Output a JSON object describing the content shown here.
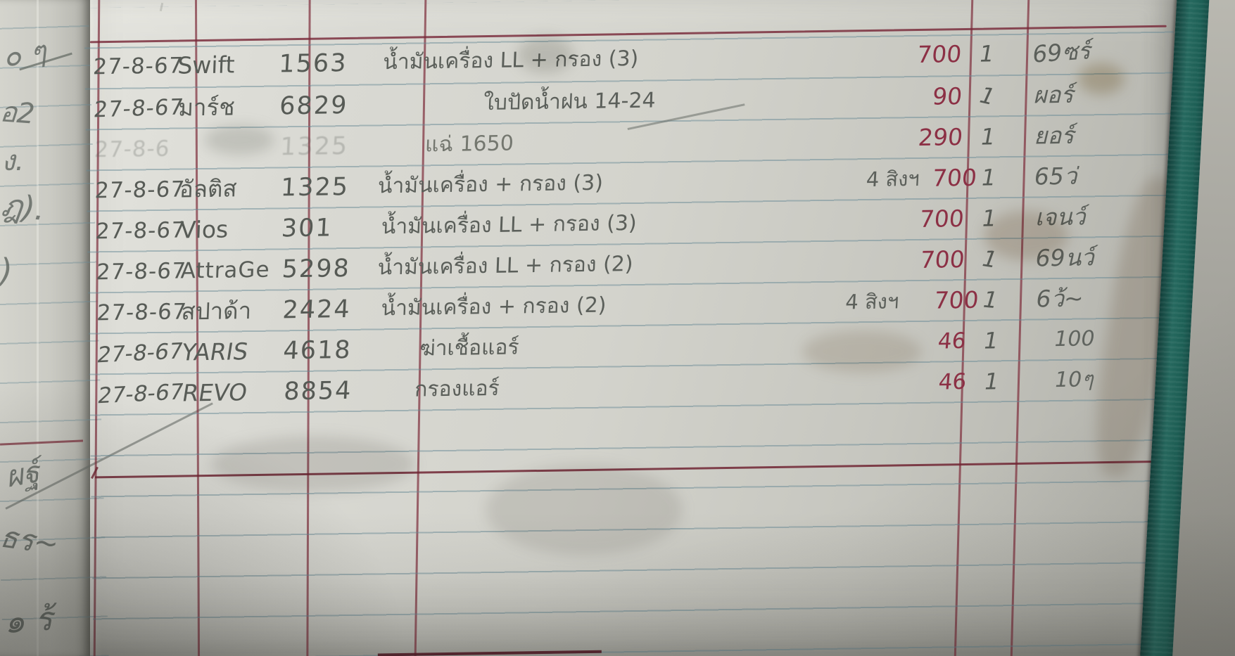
{
  "page": {
    "kind": "handwritten vehicle service ledger page",
    "date_repeated": "27-8-67"
  },
  "colors": {
    "paper": "#d7d7d0",
    "rule_blue": "#6a8a94",
    "rule_red": "#7a2a3a",
    "ink_red": "#8c3045",
    "pencil": "#5b5f5a",
    "binding_teal": "#1d5f55"
  },
  "rows": [
    {
      "date": "27-8-67",
      "vehicle": "Swift",
      "number": "1563",
      "description": "น้ำมันเครื่อง LL + กรอง (3)",
      "note": "",
      "amount": "700",
      "qty": "1",
      "sign": "69ซร์"
    },
    {
      "date": "27-8-67",
      "vehicle": "มาร์ช",
      "number": "6829",
      "description": "ใบปัดน้ำฝน 14-24",
      "note": "",
      "amount": "90",
      "qty": "1",
      "sign": "ผอร์"
    },
    {
      "date": "27-8-6",
      "vehicle": "",
      "number": "1325",
      "description": "แฉ่ 1650",
      "note": "",
      "amount": "290",
      "qty": "1",
      "sign": "ยอร์"
    },
    {
      "date": "27-8-67",
      "vehicle": "อัลติส",
      "number": "1325",
      "description": "น้ำมันเครื่อง + กรอง (3)",
      "note": "4 สิงฯ",
      "amount": "700",
      "qty": "1",
      "sign": "65ว่"
    },
    {
      "date": "27-8-67",
      "vehicle": "Vios",
      "number": "301",
      "description": "น้ำมันเครื่อง LL + กรอง (3)",
      "note": "",
      "amount": "700",
      "qty": "1",
      "sign": "เจนว์"
    },
    {
      "date": "27-8-67",
      "vehicle": "AttraGe",
      "number": "5298",
      "description": "น้ำมันเครื่อง LL + กรอง (2)",
      "note": "",
      "amount": "700",
      "qty": "1",
      "sign": "69นว์"
    },
    {
      "date": "27-8-67",
      "vehicle": "สปาด้า",
      "number": "2424",
      "description": "น้ำมันเครื่อง + กรอง (2)",
      "note": "4 สิงฯ",
      "amount": "700",
      "qty": "1",
      "sign": "6ว้~"
    },
    {
      "date": "27-8-67",
      "vehicle": "YARIS",
      "number": "4618",
      "description": "ฆ่าเชื้อแอร์",
      "note": "",
      "amount": "46",
      "qty": "1",
      "sign": "100"
    },
    {
      "date": "27-8-67",
      "vehicle": "REVO",
      "number": "8854",
      "description": "กรองแอร์",
      "note": "",
      "amount": "46",
      "qty": "1",
      "sign": "10ๆ"
    }
  ],
  "margin_scribbles": [
    "๐ ๆ",
    "อ2",
    "ง.",
    "ฎ).",
    ")",
    "ผฐ์",
    "ธร~",
    "๑ ร้"
  ]
}
